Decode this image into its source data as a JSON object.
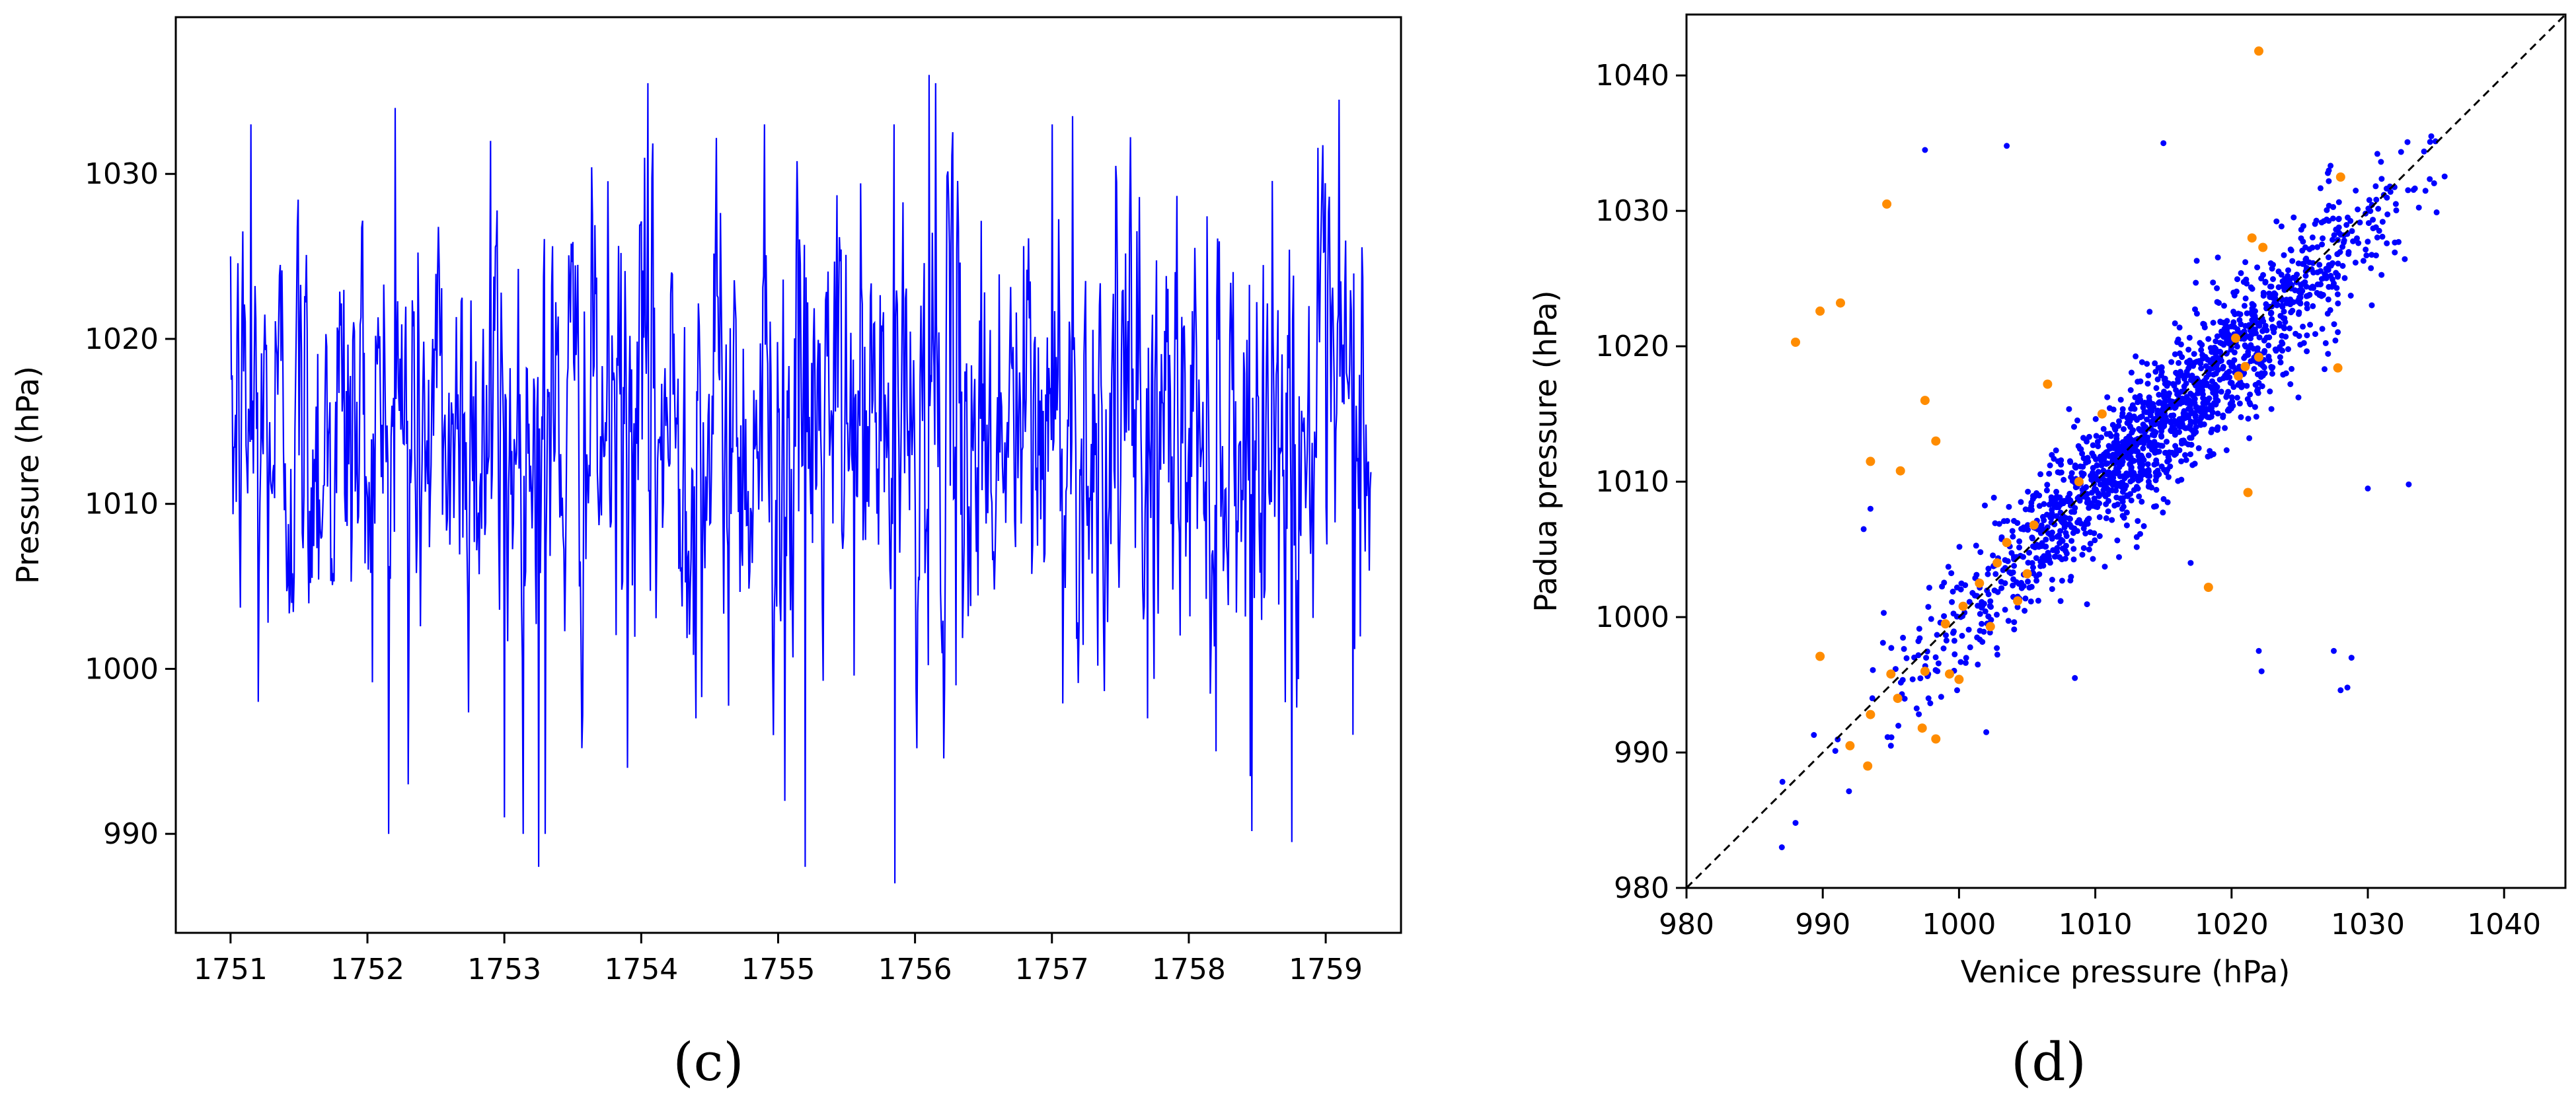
{
  "chart_data": [
    {
      "type": "line",
      "panel_label": "(c)",
      "xlabel": "",
      "ylabel": "Pressure (hPa)",
      "xlim": [
        1750.6,
        1759.55
      ],
      "ylim": [
        984,
        1039.5
      ],
      "x_ticks": [
        1751,
        1752,
        1753,
        1754,
        1755,
        1756,
        1757,
        1758,
        1759
      ],
      "x_tick_labels": [
        "1751",
        "1752",
        "1753",
        "1754",
        "1755",
        "1756",
        "1757",
        "1758",
        "1759"
      ],
      "y_ticks": [
        990,
        1000,
        1010,
        1020,
        1030
      ],
      "y_tick_labels": [
        "990",
        "1000",
        "1010",
        "1020",
        "1030"
      ],
      "series": [
        {
          "color": "#0000ff",
          "x_start": 1751.0,
          "x_end": 1759.33,
          "sample_count": 1400,
          "mean": 1014.5,
          "std": 6.5,
          "min": 987,
          "max": 1036,
          "extreme_points": [
            {
              "x": 1751.0,
              "y": 1025
            },
            {
              "x": 1751.15,
              "y": 1033
            },
            {
              "x": 1751.2,
              "y": 998
            },
            {
              "x": 1752.2,
              "y": 1034
            },
            {
              "x": 1752.3,
              "y": 993
            },
            {
              "x": 1752.9,
              "y": 1032
            },
            {
              "x": 1753.0,
              "y": 991
            },
            {
              "x": 1753.25,
              "y": 988
            },
            {
              "x": 1753.3,
              "y": 990
            },
            {
              "x": 1753.9,
              "y": 994
            },
            {
              "x": 1754.05,
              "y": 1035.5
            },
            {
              "x": 1754.4,
              "y": 997
            },
            {
              "x": 1754.9,
              "y": 1033
            },
            {
              "x": 1755.05,
              "y": 992
            },
            {
              "x": 1755.2,
              "y": 988
            },
            {
              "x": 1755.85,
              "y": 987
            },
            {
              "x": 1756.1,
              "y": 1036
            },
            {
              "x": 1756.15,
              "y": 1035.5
            },
            {
              "x": 1756.3,
              "y": 999
            },
            {
              "x": 1757.0,
              "y": 1033
            },
            {
              "x": 1757.15,
              "y": 1033.5
            },
            {
              "x": 1757.7,
              "y": 997
            },
            {
              "x": 1758.2,
              "y": 995
            },
            {
              "x": 1758.45,
              "y": 993.5
            },
            {
              "x": 1758.75,
              "y": 989.5
            },
            {
              "x": 1759.1,
              "y": 1034.5
            },
            {
              "x": 1759.2,
              "y": 996
            }
          ]
        }
      ]
    },
    {
      "type": "scatter",
      "panel_label": "(d)",
      "xlabel": "Venice pressure (hPa)",
      "ylabel": "Padua pressure (hPa)",
      "xlim": [
        980,
        1044.5
      ],
      "ylim": [
        980,
        1044.5
      ],
      "x_ticks": [
        980,
        990,
        1000,
        1010,
        1020,
        1030,
        1040
      ],
      "x_tick_labels": [
        "980",
        "990",
        "1000",
        "1010",
        "1020",
        "1030",
        "1040"
      ],
      "y_ticks": [
        980,
        990,
        1000,
        1010,
        1020,
        1030,
        1040
      ],
      "y_tick_labels": [
        "980",
        "990",
        "1000",
        "1010",
        "1020",
        "1030",
        "1040"
      ],
      "reference_line": {
        "x": [
          980,
          1044.5
        ],
        "y": [
          980,
          1044.5
        ],
        "style": "dashed",
        "color": "#000000"
      },
      "series": [
        {
          "color": "#0000ff",
          "main_cloud": {
            "point_count": 1700,
            "center": [
              1015,
              1015
            ],
            "spread_along": 8.5,
            "spread_across": 1.8,
            "range": [
              987,
              1036
            ]
          },
          "points": [
            [
              987.0,
              983.0
            ],
            [
              988.0,
              984.8
            ],
            [
              993.0,
              1006.5
            ],
            [
              993.5,
              1008.0
            ],
            [
              997.5,
              1034.5
            ],
            [
              1003.5,
              1034.8
            ],
            [
              1015.0,
              1035.0
            ],
            [
              1022.0,
              997.5
            ],
            [
              1022.2,
              996.0
            ],
            [
              1027.5,
              997.5
            ],
            [
              1028.0,
              994.6
            ],
            [
              1028.5,
              994.8
            ],
            [
              1028.8,
              997.0
            ],
            [
              1030.0,
              1009.5
            ],
            [
              1033.0,
              1009.8
            ],
            [
              1017.0,
              1004.0
            ],
            [
              1002.0,
              991.5
            ],
            [
              1008.5,
              995.5
            ],
            [
              995.0,
              990.5
            ],
            [
              1024.0,
              1018.0
            ]
          ]
        },
        {
          "color": "#ff8c00",
          "points": [
            [
              988.0,
              1020.3
            ],
            [
              989.8,
              1022.6
            ],
            [
              991.3,
              1023.2
            ],
            [
              994.7,
              1030.5
            ],
            [
              997.5,
              1016.0
            ],
            [
              993.5,
              1011.5
            ],
            [
              995.7,
              1010.8
            ],
            [
              998.3,
              1013.0
            ],
            [
              989.8,
              997.1
            ],
            [
              992.0,
              990.5
            ],
            [
              993.3,
              989.0
            ],
            [
              993.5,
              992.8
            ],
            [
              995.0,
              995.8
            ],
            [
              995.5,
              994.0
            ],
            [
              997.3,
              991.8
            ],
            [
              998.3,
              991.0
            ],
            [
              997.5,
              996.0
            ],
            [
              999.3,
              995.8
            ],
            [
              1000.0,
              995.4
            ],
            [
              999.0,
              999.5
            ],
            [
              1000.3,
              1000.8
            ],
            [
              1001.5,
              1002.5
            ],
            [
              1002.3,
              999.3
            ],
            [
              1002.8,
              1004.0
            ],
            [
              1003.5,
              1005.5
            ],
            [
              1004.3,
              1001.2
            ],
            [
              1005.0,
              1003.2
            ],
            [
              1005.5,
              1006.8
            ],
            [
              1006.5,
              1017.2
            ],
            [
              1008.8,
              1010.0
            ],
            [
              1010.5,
              1015.0
            ],
            [
              1018.3,
              1002.2
            ],
            [
              1020.5,
              1017.8
            ],
            [
              1021.0,
              1018.5
            ],
            [
              1021.2,
              1009.2
            ],
            [
              1021.5,
              1028.0
            ],
            [
              1022.0,
              1019.2
            ],
            [
              1022.3,
              1027.3
            ],
            [
              1022.0,
              1041.8
            ],
            [
              1028.0,
              1032.5
            ],
            [
              1027.8,
              1018.4
            ],
            [
              1020.3,
              1020.6
            ]
          ]
        }
      ]
    }
  ]
}
